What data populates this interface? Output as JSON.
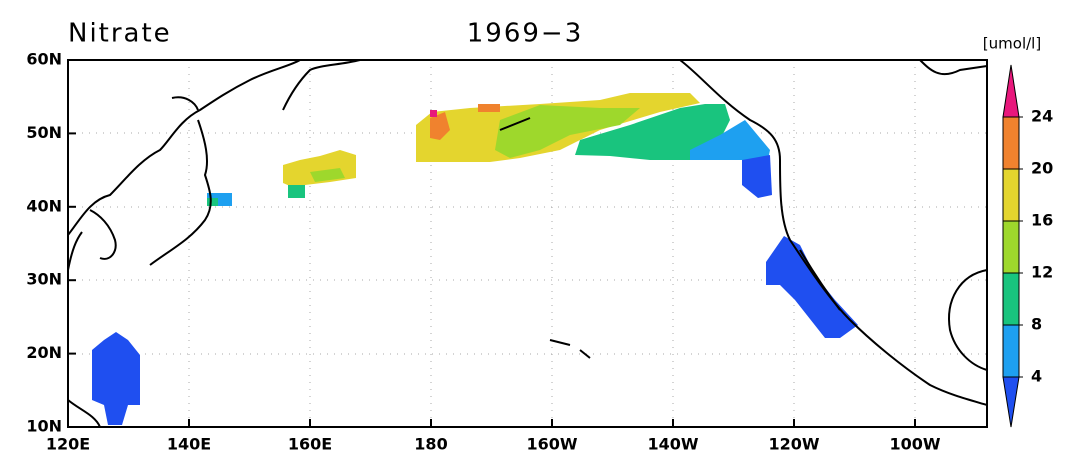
{
  "title": "Nitrate",
  "period": "1969−3",
  "unit": "[umol/l]",
  "lat_labels": [
    "60N",
    "50N",
    "40N",
    "30N",
    "20N",
    "10N"
  ],
  "lon_labels": [
    "120E",
    "140E",
    "160E",
    "180",
    "160W",
    "140W",
    "120W",
    "100W"
  ],
  "colorbar": {
    "levels": [
      4,
      8,
      12,
      16,
      20,
      24
    ],
    "colors": [
      "#1f4ff0",
      "#1ea0f0",
      "#19c47e",
      "#9ed82c",
      "#e4d52e",
      "#f0822e",
      "#e8187c"
    ]
  }
}
